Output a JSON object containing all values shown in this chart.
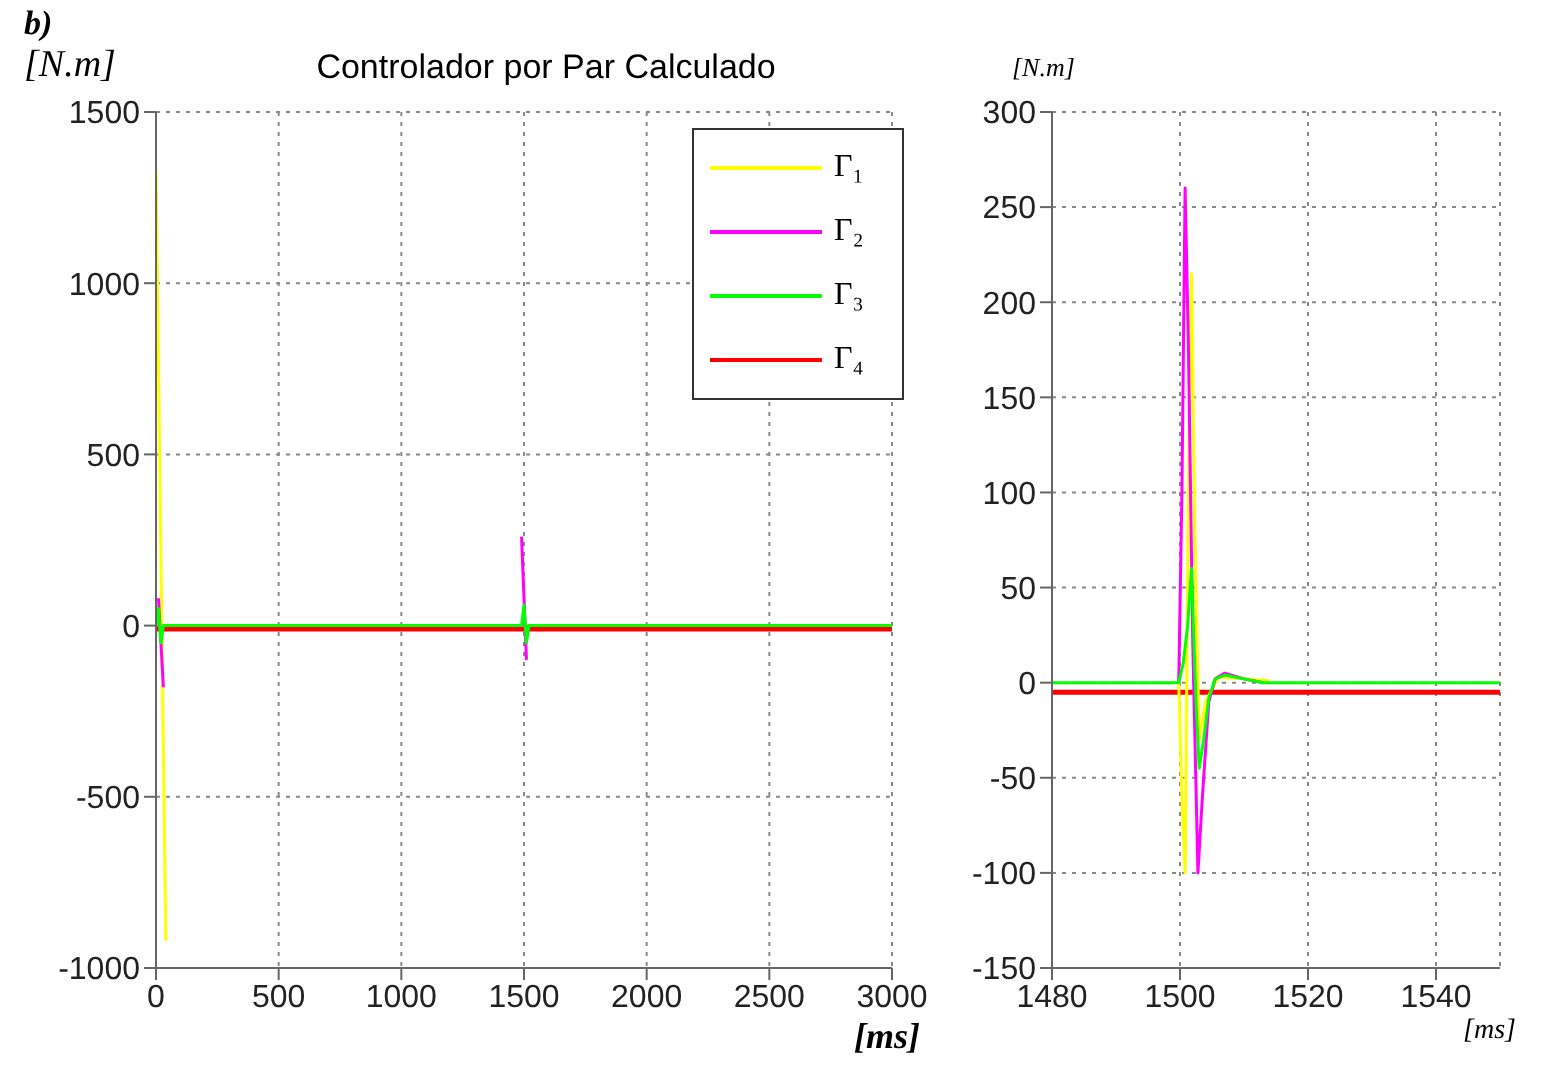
{
  "chart_data": [
    {
      "type": "line",
      "title": "Controlador por Par Calculado",
      "xlabel": "[ms]",
      "ylabel": "[N.m]",
      "annotations": [
        "b)"
      ],
      "xlim": [
        0,
        3000
      ],
      "xticks": [
        0,
        500,
        1000,
        1500,
        2000,
        2500,
        3000
      ],
      "ylim": [
        -1000,
        1500
      ],
      "yticks": [
        -1000,
        -500,
        0,
        500,
        1000,
        1500
      ],
      "grid": true,
      "legend": "top right",
      "marker": "none",
      "line_style": "solid",
      "series": [
        {
          "name": "Γ₁",
          "color": "#ffff00",
          "x": [
            0,
            40
          ],
          "values": [
            1330,
            -920
          ]
        },
        {
          "name": "Γ₂",
          "color": "#ff00ff",
          "x": [
            10,
            30,
            1000,
            1490,
            1510
          ],
          "values": [
            80,
            -180,
            null,
            260,
            -100
          ]
        },
        {
          "name": "Γ₃",
          "color": "#00ff00",
          "x": [
            0,
            10,
            20,
            30,
            1490,
            1500,
            1510,
            1520,
            3000
          ],
          "values": [
            0,
            50,
            -50,
            0,
            0,
            60,
            -50,
            0,
            0
          ]
        },
        {
          "name": "Γ₄",
          "color": "#ff0000",
          "x": [
            0,
            3000
          ],
          "values": [
            -10,
            -10
          ]
        }
      ]
    },
    {
      "type": "line",
      "xlabel": "[ms]",
      "ylabel": "[N.m]",
      "xlim": [
        1480,
        1550
      ],
      "xticks": [
        1480,
        1500,
        1520,
        1540
      ],
      "ylim": [
        -150,
        300
      ],
      "yticks": [
        -150,
        -100,
        -50,
        0,
        50,
        100,
        150,
        200,
        250,
        300
      ],
      "grid": true,
      "marker": "none",
      "line_style": "solid",
      "series": [
        {
          "color": "#ffff00",
          "x": [
            1499.8,
            1500.3,
            1500.8,
            1501.3,
            1501.8,
            1502.3,
            1503,
            1504,
            1506,
            1510,
            1514
          ],
          "values": [
            0,
            -60,
            -100,
            100,
            215,
            80,
            -30,
            -10,
            3,
            2,
            1
          ]
        },
        {
          "color": "#ff00ff",
          "x": [
            1499.8,
            1500.3,
            1500.8,
            1501.3,
            1502,
            1502.8,
            1503.5,
            1504.5,
            1505.5,
            1507,
            1510,
            1513
          ],
          "values": [
            0,
            100,
            260,
            180,
            20,
            -100,
            -60,
            -10,
            2,
            5,
            2,
            0
          ]
        },
        {
          "color": "#00ff00",
          "x": [
            1480,
            1499.8,
            1500.5,
            1501.2,
            1501.8,
            1502.5,
            1503,
            1503.7,
            1504.5,
            1505.5,
            1507,
            1510,
            1513,
            1550
          ],
          "values": [
            0,
            0,
            10,
            30,
            60,
            -10,
            -45,
            -30,
            -8,
            2,
            4,
            2,
            0,
            0
          ]
        },
        {
          "color": "#ff0000",
          "x": [
            1480,
            1550
          ],
          "values": [
            -5,
            -5
          ]
        }
      ]
    }
  ]
}
